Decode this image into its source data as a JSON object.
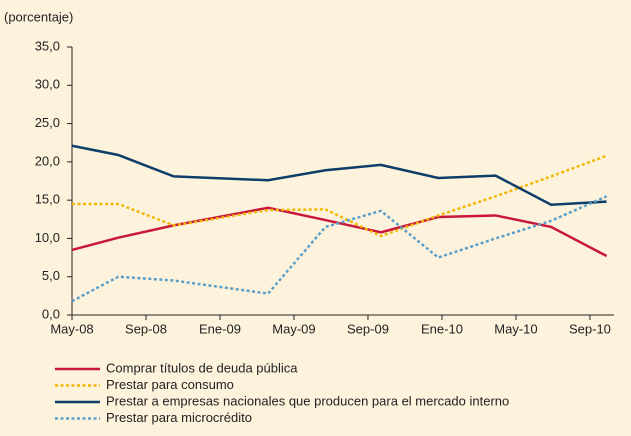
{
  "chart_data": {
    "type": "line",
    "y_label": "(porcentaje)",
    "x": [
      0,
      2.5,
      5.5,
      10.6,
      13.7,
      16.7,
      19.8,
      22.9,
      25.9,
      28.9
    ],
    "xlim": [
      0,
      29.3
    ],
    "xticks": [
      {
        "value": 0,
        "label": "May-08"
      },
      {
        "value": 4,
        "label": "Sep-08"
      },
      {
        "value": 8,
        "label": "Ene-09"
      },
      {
        "value": 12,
        "label": "May-09"
      },
      {
        "value": 16,
        "label": "Sep-09"
      },
      {
        "value": 20,
        "label": "Ene-10"
      },
      {
        "value": 24,
        "label": "May-10"
      },
      {
        "value": 28,
        "label": "Sep-10"
      }
    ],
    "ylim": [
      0,
      35
    ],
    "yticks": [
      {
        "value": 0,
        "label": "0,0"
      },
      {
        "value": 5,
        "label": "5,0"
      },
      {
        "value": 10,
        "label": "10,0"
      },
      {
        "value": 15,
        "label": "15,0"
      },
      {
        "value": 20,
        "label": "20,0"
      },
      {
        "value": 25,
        "label": "25,0"
      },
      {
        "value": 30,
        "label": "30,0"
      },
      {
        "value": 35,
        "label": "35,0"
      }
    ],
    "series": [
      {
        "name": "Comprar títulos de deuda pública",
        "color": "#c8173a",
        "style": "solid",
        "values": [
          8.5,
          10.1,
          11.7,
          14.0,
          12.4,
          10.8,
          12.8,
          13.0,
          11.5,
          7.7
        ]
      },
      {
        "name": "Prestar para consumo",
        "color": "#f2b705",
        "style": "dotted",
        "values": [
          14.5,
          14.5,
          11.7,
          13.7,
          13.8,
          10.3,
          13.0,
          15.5,
          18.1,
          20.8
        ]
      },
      {
        "name": "Prestar a empresas nacionales que producen para el mercado interno",
        "color": "#0d3d68",
        "style": "solid",
        "values": [
          22.1,
          20.9,
          18.1,
          17.6,
          18.9,
          19.6,
          17.9,
          18.2,
          14.4,
          14.8
        ]
      },
      {
        "name": "Prestar para microcrédito",
        "color": "#5b9fc9",
        "style": "dotted",
        "values": [
          1.8,
          5.0,
          4.5,
          2.8,
          11.5,
          13.6,
          7.5,
          10.0,
          12.3,
          15.5
        ]
      }
    ]
  }
}
